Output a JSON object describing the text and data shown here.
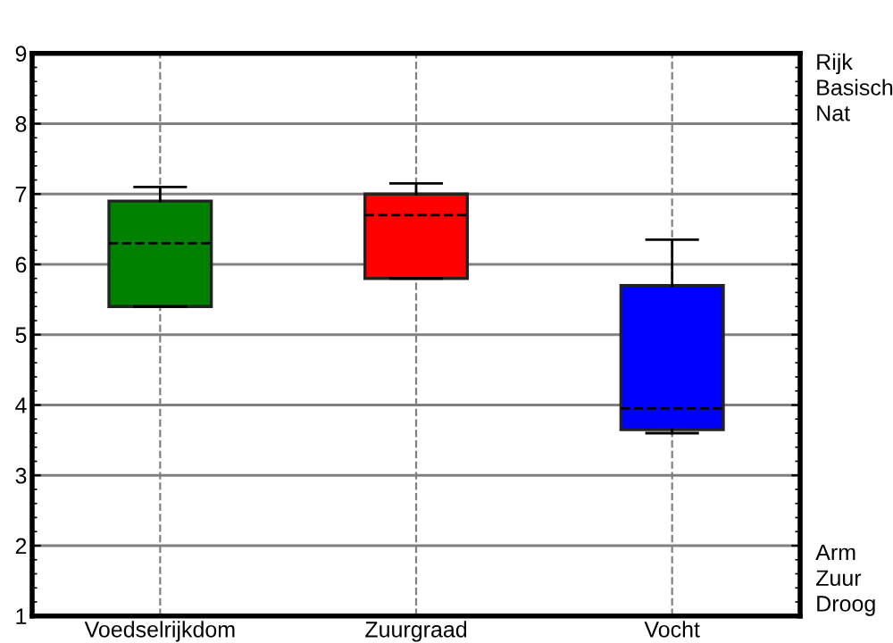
{
  "chart_data": {
    "type": "box",
    "categories": [
      "Voedselrijkdom",
      "Zuurgraad",
      "Vocht"
    ],
    "boxes": [
      {
        "low": 5.4,
        "q1": 5.4,
        "median": 6.3,
        "q3": 6.9,
        "high": 7.1
      },
      {
        "low": 5.8,
        "q1": 5.8,
        "median": 6.7,
        "q3": 7.0,
        "high": 7.15
      },
      {
        "low": 3.6,
        "q1": 3.65,
        "median": 3.95,
        "q3": 5.7,
        "high": 6.35
      }
    ],
    "colors": [
      "#008000",
      "#ff0000",
      "#0000ff"
    ],
    "ylim": [
      1,
      9
    ],
    "yticks": [
      1,
      2,
      3,
      4,
      5,
      6,
      7,
      8,
      9
    ],
    "grid": true,
    "annotations": [
      "Rijk\nBasisch\nNat",
      "Arm\nZuur\nDroog"
    ]
  }
}
